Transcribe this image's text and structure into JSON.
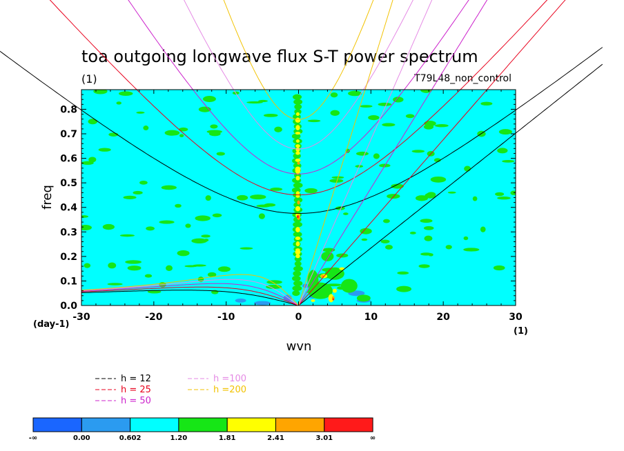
{
  "chart_data": {
    "type": "heatmap",
    "title": "toa outgoing longwave flux S-T power spectrum",
    "subtitle": "(1)",
    "case_label": "T79L48_non_control",
    "xlabel": "wvn",
    "ylabel": "freq",
    "x_unit": "(1)",
    "y_unit": "(day-1)",
    "xlim": [
      -30,
      30
    ],
    "ylim": [
      0,
      0.88
    ],
    "x_ticks": [
      "-30",
      "-20",
      "-10",
      "0",
      "10",
      "20",
      "30"
    ],
    "x_tick_values": [
      -30,
      -20,
      -10,
      0,
      10,
      20,
      30
    ],
    "y_ticks": [
      "0.0",
      "0.1",
      "0.2",
      "0.3",
      "0.4",
      "0.5",
      "0.6",
      "0.7",
      "0.8"
    ],
    "y_tick_values": [
      0,
      0.1,
      0.2,
      0.3,
      0.4,
      0.5,
      0.6,
      0.7,
      0.8
    ],
    "background_level": "0.602 to 1.20 (cyan)",
    "dispersion_curves": [
      {
        "label": "h = 12",
        "h": 12,
        "color": "#000000"
      },
      {
        "label": "h = 25",
        "h": 25,
        "color": "#e8001c"
      },
      {
        "label": "h = 50",
        "h": 50,
        "color": "#cc22cc"
      },
      {
        "label": "h =100",
        "h": 100,
        "color": "#e58ae5"
      },
      {
        "label": "h =200",
        "h": 200,
        "color": "#f2c200"
      }
    ],
    "colorbar": {
      "labels": [
        "-∞",
        "0.00",
        "0.602",
        "1.20",
        "1.81",
        "2.41",
        "3.01",
        "∞"
      ],
      "colors": [
        "#1a66ff",
        "#2b9bf0",
        "#00ffff",
        "#16e616",
        "#ffff00",
        "#ffa500",
        "#ff1a1a"
      ]
    }
  }
}
